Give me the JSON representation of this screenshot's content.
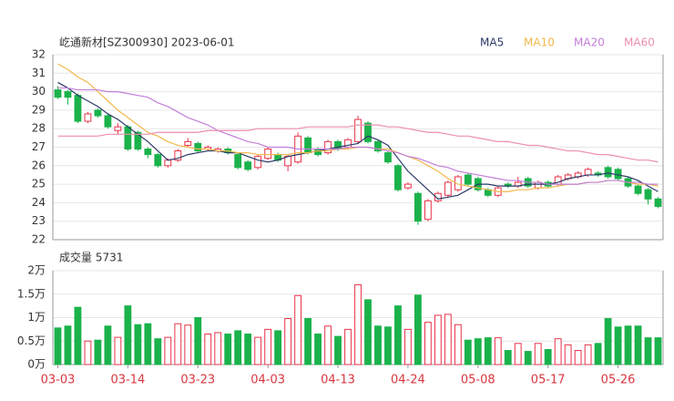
{
  "chart_data": [
    {
      "type": "candlestick",
      "title": "屹通新材[SZ300930] 2023-06-01",
      "up_color": "#e8334a",
      "down_color": "#1bb24b",
      "open": [
        30.1,
        30.0,
        29.8,
        28.4,
        29.0,
        28.7,
        27.9,
        28.1,
        27.8,
        26.9,
        26.6,
        26.0,
        26.3,
        27.1,
        27.2,
        26.9,
        26.8,
        26.9,
        26.6,
        26.2,
        25.9,
        26.4,
        26.6,
        26.0,
        26.2,
        27.5,
        26.9,
        26.7,
        27.3,
        27.0,
        27.3,
        28.3,
        27.3,
        26.7,
        26.0,
        24.8,
        24.5,
        23.1,
        24.1,
        24.4,
        24.7,
        25.5,
        25.3,
        24.7,
        24.4,
        25.0,
        24.9,
        25.3,
        24.8,
        25.1,
        25.0,
        25.3,
        25.4,
        25.5,
        25.6,
        25.9,
        25.8,
        25.3,
        24.9,
        24.7,
        24.2
      ],
      "high": [
        30.3,
        30.1,
        29.9,
        28.9,
        29.1,
        28.8,
        28.3,
        28.2,
        27.9,
        27.0,
        26.7,
        26.4,
        26.9,
        27.5,
        27.3,
        27.1,
        27.0,
        27.0,
        26.7,
        26.3,
        26.6,
        27.0,
        26.7,
        26.6,
        27.8,
        27.6,
        27.0,
        27.4,
        27.4,
        27.5,
        28.7,
        28.4,
        27.4,
        26.8,
        26.1,
        25.1,
        24.6,
        24.2,
        24.6,
        25.2,
        25.5,
        25.6,
        25.4,
        24.8,
        24.9,
        25.1,
        25.4,
        25.4,
        25.2,
        25.2,
        25.5,
        25.6,
        25.7,
        25.9,
        25.7,
        26.0,
        25.9,
        25.4,
        25.0,
        24.8,
        24.3
      ],
      "low": [
        29.6,
        29.3,
        28.3,
        28.3,
        28.6,
        28.0,
        27.7,
        26.8,
        26.8,
        26.4,
        25.9,
        25.9,
        26.2,
        27.0,
        26.7,
        26.8,
        26.7,
        26.6,
        25.8,
        25.7,
        25.8,
        26.3,
        26.2,
        25.7,
        26.1,
        26.6,
        26.5,
        26.6,
        26.8,
        26.9,
        27.2,
        27.2,
        26.7,
        26.1,
        24.6,
        24.7,
        22.8,
        23.0,
        24.0,
        24.3,
        24.6,
        24.9,
        24.6,
        24.3,
        24.3,
        24.8,
        24.8,
        24.8,
        24.7,
        24.8,
        24.9,
        25.2,
        25.3,
        25.4,
        25.4,
        25.3,
        25.2,
        24.8,
        24.4,
        23.9,
        23.7
      ],
      "close": [
        29.7,
        29.7,
        28.4,
        28.8,
        28.7,
        28.1,
        28.1,
        26.9,
        26.9,
        26.6,
        26.0,
        26.3,
        26.8,
        27.3,
        26.8,
        27.0,
        26.9,
        26.7,
        25.9,
        25.8,
        26.5,
        26.9,
        26.3,
        26.5,
        27.6,
        26.7,
        26.6,
        27.3,
        26.9,
        27.4,
        28.5,
        27.3,
        26.8,
        26.2,
        24.7,
        25.0,
        23.0,
        24.1,
        24.5,
        25.1,
        25.4,
        25.0,
        24.7,
        24.4,
        24.8,
        24.9,
        25.1,
        24.9,
        25.1,
        24.9,
        25.4,
        25.5,
        25.6,
        25.8,
        25.5,
        25.4,
        25.3,
        24.9,
        24.5,
        24.2,
        23.8
      ],
      "series": [
        {
          "name": "MA5",
          "color": "#2b3a67",
          "values": [
            30.5,
            30.2,
            29.8,
            29.5,
            29.2,
            28.8,
            28.5,
            28.1,
            27.7,
            27.3,
            26.8,
            26.3,
            26.4,
            26.6,
            26.7,
            26.8,
            26.8,
            26.7,
            26.7,
            26.5,
            26.3,
            26.2,
            26.3,
            26.5,
            26.6,
            26.7,
            26.8,
            26.9,
            27.0,
            27.1,
            27.2,
            27.6,
            27.4,
            27.1,
            26.4,
            25.7,
            25.2,
            24.7,
            24.2,
            24.3,
            24.4,
            24.7,
            25.0,
            25.0,
            24.9,
            24.9,
            24.9,
            25.0,
            25.0,
            25.0,
            25.1,
            25.3,
            25.4,
            25.5,
            25.5,
            25.6,
            25.5,
            25.4,
            25.2,
            24.9,
            24.6
          ]
        },
        {
          "name": "MA10",
          "color": "#f2b84b",
          "values": [
            31.5,
            31.2,
            30.8,
            30.5,
            30.0,
            29.5,
            29.0,
            28.6,
            28.2,
            27.8,
            27.6,
            27.3,
            27.1,
            27.0,
            26.9,
            26.9,
            26.8,
            26.8,
            26.7,
            26.7,
            26.6,
            26.6,
            26.6,
            26.6,
            26.7,
            26.7,
            26.8,
            26.8,
            26.9,
            26.9,
            27.0,
            27.0,
            26.9,
            26.9,
            26.7,
            26.5,
            26.3,
            26.0,
            25.7,
            25.3,
            25.0,
            24.9,
            24.8,
            24.7,
            24.6,
            24.6,
            24.7,
            24.7,
            24.8,
            24.8,
            24.9,
            25.0,
            25.0,
            25.1,
            25.1,
            25.2,
            25.2,
            25.1,
            25.0,
            25.0,
            24.9
          ]
        },
        {
          "name": "MA20",
          "color": "#c27fd8",
          "values": [
            30.2,
            30.2,
            30.1,
            30.1,
            30.1,
            30.0,
            30.0,
            29.9,
            29.8,
            29.7,
            29.4,
            29.2,
            28.9,
            28.6,
            28.4,
            28.2,
            27.9,
            27.7,
            27.5,
            27.3,
            27.2,
            27.0,
            27.0,
            27.0,
            26.9,
            26.9,
            26.9,
            26.9,
            26.9,
            27.0,
            27.0,
            27.0,
            26.9,
            26.8,
            26.7,
            26.5,
            26.4,
            26.2,
            26.0,
            25.9,
            25.7,
            25.6,
            25.5,
            25.4,
            25.3,
            25.2,
            25.2,
            25.1,
            25.1,
            25.0,
            25.0,
            25.0,
            25.0,
            25.1,
            25.1,
            25.2,
            25.2,
            25.1,
            25.1,
            25.0,
            25.0
          ]
        },
        {
          "name": "MA60",
          "color": "#ec8fb0",
          "values": [
            27.6,
            27.6,
            27.6,
            27.6,
            27.6,
            27.7,
            27.7,
            27.7,
            27.7,
            27.7,
            27.8,
            27.8,
            27.8,
            27.8,
            27.8,
            27.9,
            27.9,
            27.9,
            27.9,
            27.9,
            28.0,
            28.0,
            28.0,
            28.0,
            28.0,
            28.1,
            28.1,
            28.1,
            28.1,
            28.1,
            28.2,
            28.2,
            28.2,
            28.1,
            28.1,
            28.0,
            27.9,
            27.8,
            27.8,
            27.7,
            27.6,
            27.6,
            27.5,
            27.4,
            27.3,
            27.3,
            27.2,
            27.1,
            27.1,
            27.0,
            26.9,
            26.8,
            26.8,
            26.7,
            26.6,
            26.6,
            26.5,
            26.4,
            26.3,
            26.3,
            26.2
          ]
        }
      ],
      "ylim": [
        22,
        32
      ],
      "yticks": [
        22,
        23,
        24,
        25,
        26,
        27,
        28,
        29,
        30,
        31,
        32
      ],
      "grid": true
    },
    {
      "type": "bar",
      "title": "成交量 5731",
      "categories": [
        "03-03",
        null,
        null,
        null,
        null,
        null,
        null,
        "03-14",
        null,
        null,
        null,
        null,
        null,
        null,
        "03-23",
        null,
        null,
        null,
        null,
        null,
        null,
        "04-03",
        null,
        null,
        null,
        null,
        null,
        null,
        "04-13",
        null,
        null,
        null,
        null,
        null,
        null,
        "04-24",
        null,
        null,
        null,
        null,
        null,
        null,
        "05-08",
        null,
        null,
        null,
        null,
        null,
        null,
        "05-17",
        null,
        null,
        null,
        null,
        null,
        null,
        "05-26",
        null,
        null,
        null,
        null
      ],
      "values": [
        0.78,
        0.82,
        1.22,
        0.5,
        0.52,
        0.82,
        0.58,
        1.25,
        0.85,
        0.87,
        0.55,
        0.58,
        0.87,
        0.84,
        1.0,
        0.65,
        0.68,
        0.65,
        0.72,
        0.65,
        0.58,
        0.75,
        0.72,
        0.98,
        1.47,
        0.98,
        0.65,
        0.82,
        0.6,
        0.75,
        1.7,
        1.38,
        0.82,
        0.8,
        1.25,
        0.75,
        1.48,
        0.9,
        1.05,
        1.07,
        0.85,
        0.52,
        0.55,
        0.57,
        0.57,
        0.3,
        0.45,
        0.28,
        0.45,
        0.32,
        0.55,
        0.42,
        0.3,
        0.42,
        0.45,
        0.98,
        0.8,
        0.82,
        0.82,
        0.57,
        0.57
      ],
      "ylim": [
        0,
        2
      ],
      "yticks": [
        {
          "value": 0,
          "label": "0万"
        },
        {
          "value": 0.5,
          "label": "0.5万"
        },
        {
          "value": 1,
          "label": "1万"
        },
        {
          "value": 1.5,
          "label": "1.5万"
        },
        {
          "value": 2,
          "label": "2万"
        }
      ],
      "grid": true
    }
  ]
}
